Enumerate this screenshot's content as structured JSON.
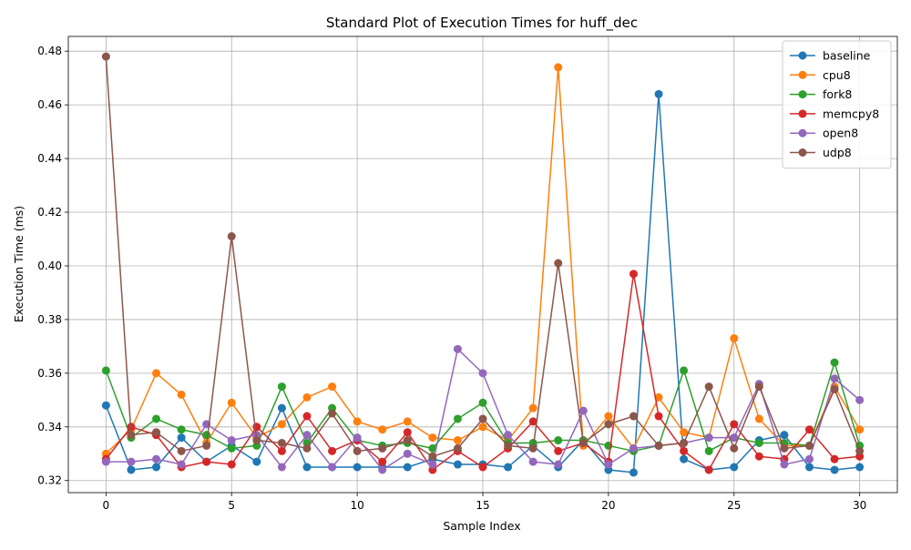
{
  "chart_data": {
    "type": "line",
    "title": "Standard Plot of Execution Times for huff_dec",
    "xlabel": "Sample Index",
    "ylabel": "Execution Time (ms)",
    "xlim": [
      -1.5,
      31.5
    ],
    "ylim": [
      0.3155,
      0.4855
    ],
    "xticks": [
      0,
      5,
      10,
      15,
      20,
      25,
      30
    ],
    "yticks": [
      0.32,
      0.34,
      0.36,
      0.38,
      0.4,
      0.42,
      0.44,
      0.46,
      0.48
    ],
    "grid": true,
    "legend_position": "top-right",
    "x": [
      0,
      1,
      2,
      3,
      4,
      5,
      6,
      7,
      8,
      9,
      10,
      11,
      12,
      13,
      14,
      15,
      16,
      17,
      18,
      19,
      20,
      21,
      22,
      23,
      24,
      25,
      26,
      27,
      28,
      29,
      30
    ],
    "series": [
      {
        "name": "baseline",
        "color": "#1f77b4",
        "values": [
          0.348,
          0.324,
          0.325,
          0.336,
          0.327,
          0.333,
          0.327,
          0.347,
          0.325,
          0.325,
          0.325,
          0.325,
          0.325,
          0.328,
          0.326,
          0.326,
          0.325,
          0.333,
          0.325,
          0.335,
          0.324,
          0.323,
          0.464,
          0.328,
          0.324,
          0.325,
          0.335,
          0.337,
          0.325,
          0.324,
          0.325
        ]
      },
      {
        "name": "cpu8",
        "color": "#ff7f0e",
        "values": [
          0.33,
          0.339,
          0.36,
          0.352,
          0.334,
          0.349,
          0.336,
          0.341,
          0.351,
          0.355,
          0.342,
          0.339,
          0.342,
          0.336,
          0.335,
          0.34,
          0.335,
          0.347,
          0.474,
          0.333,
          0.344,
          0.332,
          0.351,
          0.338,
          0.336,
          0.373,
          0.343,
          0.333,
          0.333,
          0.355,
          0.339
        ]
      },
      {
        "name": "fork8",
        "color": "#2ca02c",
        "values": [
          0.361,
          0.336,
          0.343,
          0.339,
          0.337,
          0.332,
          0.333,
          0.355,
          0.334,
          0.347,
          0.335,
          0.333,
          0.334,
          0.332,
          0.343,
          0.349,
          0.334,
          0.334,
          0.335,
          0.335,
          0.333,
          0.331,
          0.333,
          0.361,
          0.331,
          0.336,
          0.334,
          0.334,
          0.333,
          0.364,
          0.333
        ]
      },
      {
        "name": "memcpy8",
        "color": "#d62728",
        "values": [
          0.328,
          0.34,
          0.337,
          0.325,
          0.327,
          0.326,
          0.34,
          0.331,
          0.344,
          0.331,
          0.335,
          0.327,
          0.338,
          0.324,
          0.331,
          0.325,
          0.332,
          0.342,
          0.331,
          0.334,
          0.327,
          0.397,
          0.344,
          0.331,
          0.324,
          0.341,
          0.329,
          0.328,
          0.339,
          0.328,
          0.329
        ]
      },
      {
        "name": "open8",
        "color": "#9467bd",
        "values": [
          0.327,
          0.327,
          0.328,
          0.326,
          0.341,
          0.335,
          0.337,
          0.325,
          0.337,
          0.325,
          0.336,
          0.324,
          0.33,
          0.326,
          0.369,
          0.36,
          0.337,
          0.327,
          0.326,
          0.346,
          0.326,
          0.332,
          0.333,
          0.334,
          0.336,
          0.336,
          0.356,
          0.326,
          0.328,
          0.358,
          0.35
        ]
      },
      {
        "name": "udp8",
        "color": "#8c564b",
        "values": [
          0.478,
          0.337,
          0.338,
          0.331,
          0.333,
          0.411,
          0.335,
          0.334,
          0.332,
          0.345,
          0.331,
          0.332,
          0.335,
          0.329,
          0.332,
          0.343,
          0.333,
          0.332,
          0.401,
          0.334,
          0.341,
          0.344,
          0.333,
          0.334,
          0.355,
          0.332,
          0.355,
          0.332,
          0.333,
          0.354,
          0.331
        ]
      }
    ]
  }
}
